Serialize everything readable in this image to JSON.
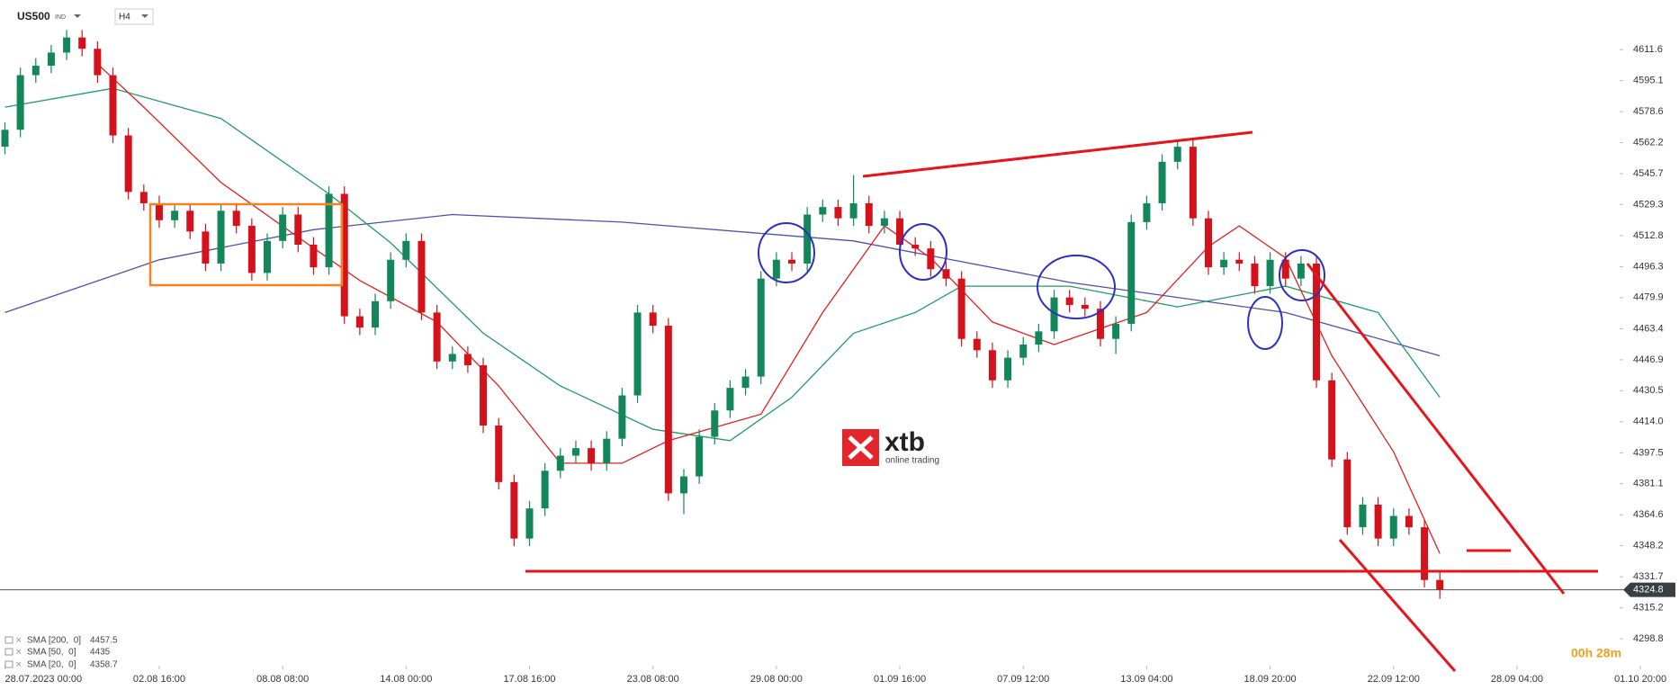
{
  "chart_data": {
    "type": "candlestick",
    "symbol": "US500",
    "symbol_tag": "IND",
    "timeframe": "H4",
    "open": [
      4560,
      4569,
      4598,
      4603,
      4610,
      4618,
      4612,
      4598,
      4566,
      4536,
      4530,
      4521,
      4526,
      4515,
      4498,
      4526,
      4518,
      4493,
      4510,
      4524,
      4508,
      4496,
      4535,
      4470,
      4464,
      4478,
      4500,
      4510,
      4472,
      4446,
      4450,
      4444,
      4412,
      4382,
      4352,
      4368,
      4388,
      4396,
      4400,
      4392,
      4405,
      4428,
      4472,
      4465,
      4376,
      4385,
      4406,
      4420,
      4432,
      4438,
      4490,
      4500,
      4498,
      4524,
      4528,
      4522,
      4530,
      4518,
      4522,
      4508,
      4506,
      4495,
      4490,
      4458,
      4452,
      4436,
      4448,
      4455,
      4462,
      4480,
      4476,
      4474,
      4458,
      4466,
      4520,
      4530,
      4552,
      4560,
      4522,
      4496,
      4500,
      4498,
      4486,
      4500,
      4490,
      4498,
      4436,
      4394,
      4358,
      4370,
      4352,
      4364,
      4358,
      4330
    ],
    "high": [
      4573,
      4602,
      4607,
      4614,
      4622,
      4622,
      4616,
      4602,
      4570,
      4540,
      4534,
      4530,
      4530,
      4519,
      4530,
      4530,
      4522,
      4514,
      4528,
      4528,
      4512,
      4539,
      4539,
      4474,
      4482,
      4504,
      4514,
      4514,
      4476,
      4454,
      4454,
      4448,
      4416,
      4386,
      4372,
      4392,
      4400,
      4404,
      4404,
      4409,
      4432,
      4476,
      4476,
      4469,
      4389,
      4410,
      4424,
      4436,
      4442,
      4494,
      4504,
      4504,
      4528,
      4532,
      4532,
      4545,
      4534,
      4526,
      4526,
      4512,
      4510,
      4499,
      4494,
      4462,
      4456,
      4452,
      4459,
      4466,
      4484,
      4484,
      4480,
      4478,
      4470,
      4524,
      4534,
      4556,
      4564,
      4564,
      4526,
      4504,
      4504,
      4502,
      4504,
      4504,
      4502,
      4502,
      4440,
      4398,
      4374,
      4374,
      4368,
      4368,
      4362,
      4334
    ],
    "low": [
      4556,
      4565,
      4594,
      4599,
      4606,
      4608,
      4594,
      4562,
      4532,
      4526,
      4517,
      4517,
      4511,
      4494,
      4494,
      4514,
      4489,
      4489,
      4506,
      4504,
      4492,
      4492,
      4466,
      4460,
      4460,
      4474,
      4496,
      4468,
      4442,
      4442,
      4440,
      4408,
      4378,
      4348,
      4348,
      4364,
      4384,
      4392,
      4388,
      4388,
      4401,
      4424,
      4461,
      4372,
      4365,
      4381,
      4402,
      4416,
      4428,
      4434,
      4486,
      4494,
      4494,
      4520,
      4518,
      4518,
      4514,
      4514,
      4504,
      4502,
      4491,
      4486,
      4454,
      4448,
      4432,
      4432,
      4444,
      4451,
      4458,
      4472,
      4470,
      4454,
      4450,
      4462,
      4516,
      4526,
      4548,
      4518,
      4492,
      4492,
      4494,
      4482,
      4482,
      4486,
      4486,
      4432,
      4390,
      4354,
      4354,
      4348,
      4348,
      4354,
      4326,
      4320
    ],
    "close": [
      4569,
      4598,
      4603,
      4610,
      4618,
      4612,
      4598,
      4566,
      4536,
      4530,
      4521,
      4526,
      4515,
      4498,
      4526,
      4518,
      4493,
      4510,
      4524,
      4508,
      4496,
      4535,
      4470,
      4464,
      4478,
      4500,
      4510,
      4472,
      4446,
      4450,
      4444,
      4412,
      4382,
      4352,
      4368,
      4388,
      4396,
      4400,
      4392,
      4405,
      4428,
      4472,
      4465,
      4376,
      4385,
      4406,
      4420,
      4432,
      4438,
      4490,
      4500,
      4498,
      4524,
      4528,
      4522,
      4530,
      4518,
      4522,
      4508,
      4506,
      4495,
      4490,
      4458,
      4452,
      4436,
      4448,
      4455,
      4462,
      4480,
      4476,
      4474,
      4458,
      4466,
      4520,
      4530,
      4552,
      4560,
      4522,
      4496,
      4500,
      4498,
      4486,
      4500,
      4490,
      4498,
      4436,
      4394,
      4358,
      4370,
      4352,
      4364,
      4358,
      4330,
      4324.8
    ],
    "up_color": "#13875a",
    "down_color": "#d3121c",
    "series": [
      {
        "name": "SMA [200,  0]",
        "last": 4457.5,
        "color": "#4a52a8",
        "x": [
          0,
          10,
          20,
          29,
          40,
          55,
          69,
          83,
          93
        ],
        "values": [
          4472,
          4500,
          4516,
          4524,
          4520,
          4510,
          4488,
          4472,
          4449
        ]
      },
      {
        "name": "SMA [50,  0]",
        "last": 4435.0,
        "color": "#1f9a6a",
        "x": [
          0,
          7,
          14,
          21,
          25,
          31,
          36,
          42,
          47,
          51,
          55,
          59,
          62,
          69,
          76,
          83,
          89,
          93
        ],
        "values": [
          4581,
          4591,
          4575,
          4535,
          4509,
          4461,
          4433,
          4410,
          4404,
          4427,
          4461,
          4472,
          4486,
          4486,
          4475,
          4486,
          4472,
          4427
        ]
      },
      {
        "name": "SMA [20,  0]",
        "last": 4358.7,
        "color": "#e02020",
        "x": [
          6,
          9,
          14,
          19,
          23,
          28,
          32,
          36,
          40,
          43,
          49,
          53,
          57,
          60,
          64,
          68,
          74,
          78,
          80,
          83,
          86,
          90,
          93
        ],
        "values": [
          4604,
          4581,
          4541,
          4512,
          4489,
          4467,
          4433,
          4392,
          4392,
          4404,
          4418,
          4472,
          4518,
          4501,
          4467,
          4455,
          4472,
          4507,
          4518,
          4501,
          4449,
          4398,
          4344
        ]
      }
    ],
    "current_price": 4324.8,
    "ylim": [
      4284.5,
      4637.9
    ],
    "yticks": [
      4611.6,
      4595.1,
      4578.6,
      4562.2,
      4545.7,
      4529.3,
      4512.8,
      4496.3,
      4479.9,
      4463.4,
      4446.9,
      4430.5,
      {
        "value": 4414.0,
        "label": "4414.0"
      },
      4397.5,
      4381.1,
      4364.6,
      4348.2,
      4331.7,
      4315.2,
      4298.8
    ],
    "xlim": [
      -0.32,
      108.5
    ],
    "xticks": [
      {
        "value": 0,
        "label": "28.07.2023  00:00"
      },
      {
        "value": 10,
        "label": "02.08 16:00"
      },
      {
        "value": 18,
        "label": "08.08 08:00"
      },
      {
        "value": 26,
        "label": "14.08 00:00"
      },
      {
        "value": 34,
        "label": "17.08 16:00"
      },
      {
        "value": 42,
        "label": "23.08 08:00"
      },
      {
        "value": 50,
        "label": "29.08 00:00"
      },
      {
        "value": 58,
        "label": "01.09 16:00"
      },
      {
        "value": 66,
        "label": "07.09 12:00"
      },
      {
        "value": 74,
        "label": "13.09 04:00"
      },
      {
        "value": 82,
        "label": "18.09 20:00"
      },
      {
        "value": 90,
        "label": "22.09 12:00"
      },
      {
        "value": 98,
        "label": "28.09 04:00"
      },
      {
        "value": 106,
        "label": "01.10 20:00"
      }
    ],
    "grid": false,
    "countdown": "00h 28m",
    "watermark": {
      "brand": "xtb",
      "tagline": "online trading"
    }
  }
}
